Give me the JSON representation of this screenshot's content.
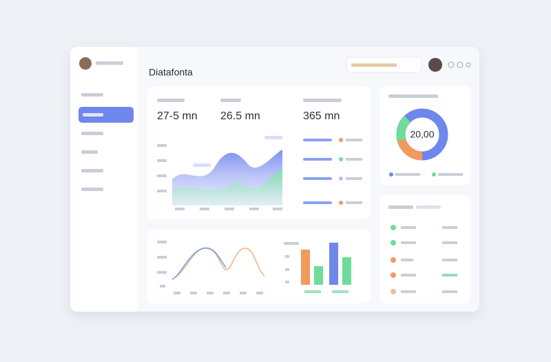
{
  "header": {
    "title": "Diatafonta"
  },
  "stats": [
    {
      "value": "27-5 mn"
    },
    {
      "value": "26.5 mn"
    },
    {
      "value": "365 mn"
    }
  ],
  "donut": {
    "center": "20,00"
  }
}
